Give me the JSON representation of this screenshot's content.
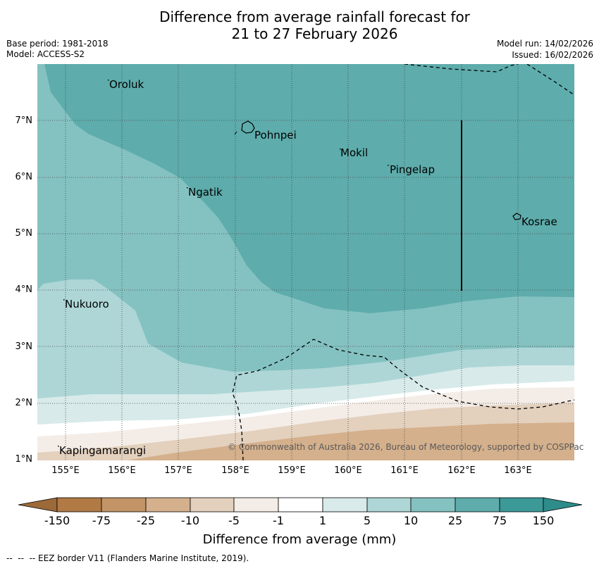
{
  "title": {
    "line1": "Difference from average rainfall forecast for",
    "line2": "21 to 27 February 2026"
  },
  "meta": {
    "base_period": "Base period: 1981-2018",
    "model": "Model: ACCESS-S2",
    "model_run": "Model run: 14/02/2026",
    "issued": "Issued: 16/02/2026"
  },
  "map": {
    "latitude_labels": [
      "7°N",
      "6°N",
      "5°N",
      "4°N",
      "3°N",
      "2°N",
      "1°N"
    ],
    "longitude_labels": [
      "155°E",
      "156°E",
      "157°E",
      "158°E",
      "159°E",
      "160°E",
      "161°E",
      "162°E",
      "163°E"
    ],
    "places": [
      {
        "name": "Oroluk"
      },
      {
        "name": "Pohnpei"
      },
      {
        "name": "Mokil"
      },
      {
        "name": "Pingelap"
      },
      {
        "name": "Ngatik"
      },
      {
        "name": "Kosrae"
      },
      {
        "name": "Nukuoro"
      },
      {
        "name": "Kapingamarangi"
      }
    ],
    "copyright": "© Commonwealth of Australia 2026, Bureau of Meteorology, supported by COSPPac"
  },
  "colorbar": {
    "ticks": [
      "-150",
      "-75",
      "-25",
      "-10",
      "-5",
      "-1",
      "1",
      "5",
      "10",
      "25",
      "75",
      "150"
    ],
    "colors": {
      "below_min": "#9c6a39",
      "b1": "#b17a45",
      "b2": "#c29466",
      "b3": "#d4b08c",
      "b4": "#e3d0bd",
      "b5": "#f4ede7",
      "b6": "#ffffff",
      "b7": "#d8eaea",
      "b8": "#aed6d6",
      "b9": "#84c2c1",
      "b10": "#5eacac",
      "b11": "#3b9997",
      "above_max": "#2e8c8a"
    },
    "label": "Difference from average (mm)"
  },
  "footer": {
    "eez_legend": "--  --  -- EEZ border V11 (Flanders Marine Institute, 2019)."
  }
}
